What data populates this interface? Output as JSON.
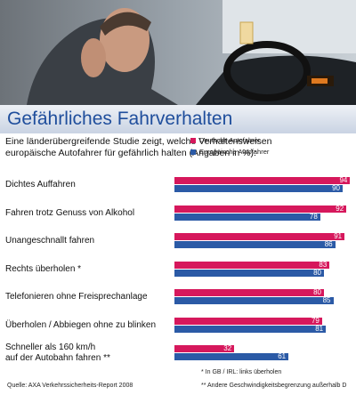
{
  "chart_data": {
    "type": "bar",
    "orientation": "horizontal",
    "title": "Gefährliches Fahrverhalten",
    "subtitle": "Eine länderübergreifende Studie zeigt, welche Verhaltensweisen\neuropäische Autofahrer für gefährlich halten (Angaben in %):",
    "categories": [
      "Dichtes Auffahren",
      "Fahren trotz Genuss von Alkohol",
      "Unangeschnallt fahren",
      "Rechts überholen *",
      "Telefonieren ohne Freisprechanlage",
      "Überholen / Abbiegen ohne zu blinken",
      "Schneller als 160 km/h\nauf der Autobahn fahren **"
    ],
    "series": [
      {
        "name": "Deutsche Autofahrer",
        "color": "#d6185c",
        "values": [
          94,
          92,
          91,
          83,
          80,
          79,
          32
        ]
      },
      {
        "name": "Europäische Autofahrer",
        "color": "#2b5aa6",
        "values": [
          90,
          78,
          86,
          80,
          85,
          81,
          61
        ]
      }
    ],
    "notes": [
      "* In GB / IRL: links überholen",
      "** Andere Geschwindigkeitsbegrenzung außerhalb D"
    ],
    "source": "Quelle: AXA Verkehrssicherheits-Report 2008"
  }
}
